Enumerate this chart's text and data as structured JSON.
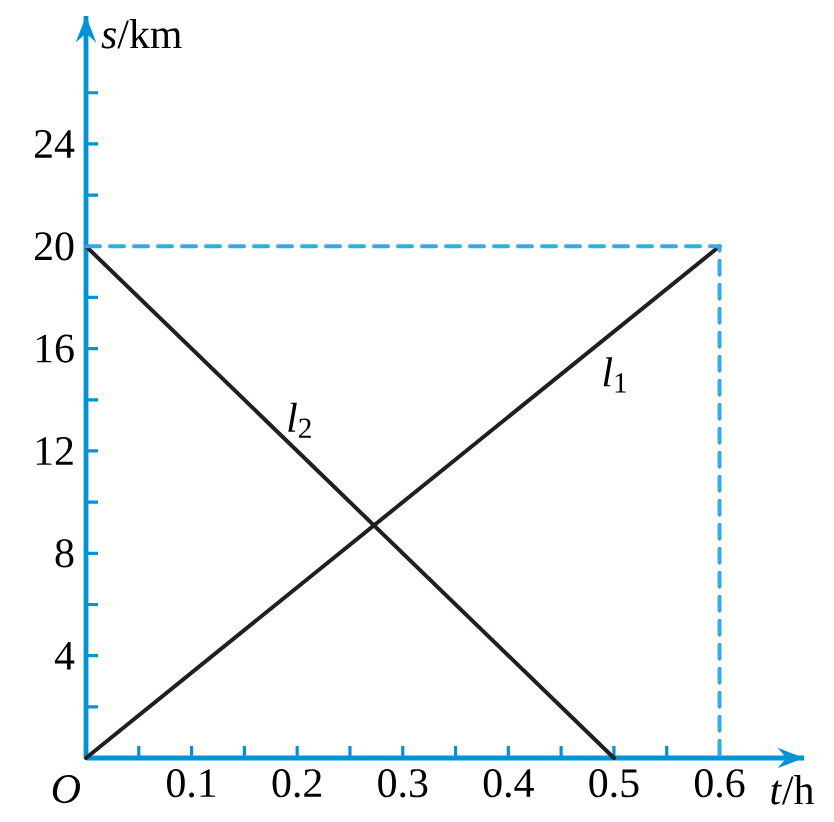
{
  "chart_data": {
    "type": "line",
    "xlabel": "*t*/h",
    "ylabel": "*s*/km",
    "xlim": [
      0,
      0.68
    ],
    "ylim": [
      0,
      29
    ],
    "xticks": [
      {
        "value": 0.05,
        "label": null
      },
      0.1,
      {
        "value": 0.15,
        "label": null
      },
      0.2,
      {
        "value": 0.25,
        "label": null
      },
      0.3,
      {
        "value": 0.35,
        "label": null
      },
      0.4,
      {
        "value": 0.45,
        "label": null
      },
      0.5,
      {
        "value": 0.55,
        "label": null
      },
      0.6
    ],
    "yticks": [
      {
        "value": 2,
        "label": null
      },
      4,
      {
        "value": 6,
        "label": null
      },
      8,
      {
        "value": 10,
        "label": null
      },
      12,
      {
        "value": 14,
        "label": null
      },
      16,
      {
        "value": 18,
        "label": null
      },
      20,
      {
        "value": 22,
        "label": null
      },
      24,
      {
        "value": 26,
        "label": null
      }
    ],
    "series": [
      {
        "name": "*l*$_{1}$",
        "color": "#231f20",
        "x": [
          0,
          0.6
        ],
        "values": [
          0,
          20
        ]
      },
      {
        "name": "*l*$_{2}$",
        "color": "#231f20",
        "x": [
          0,
          0.5
        ],
        "values": [
          20,
          0
        ]
      },
      {
        "type": "line",
        "color": "#36aae6",
        "line_style": "dashed",
        "x": [
          0,
          0.6,
          0.6
        ],
        "values": [
          20,
          20,
          0
        ]
      }
    ],
    "annotations": [
      {
        "text": "O",
        "x": 0,
        "y": 0
      }
    ]
  }
}
